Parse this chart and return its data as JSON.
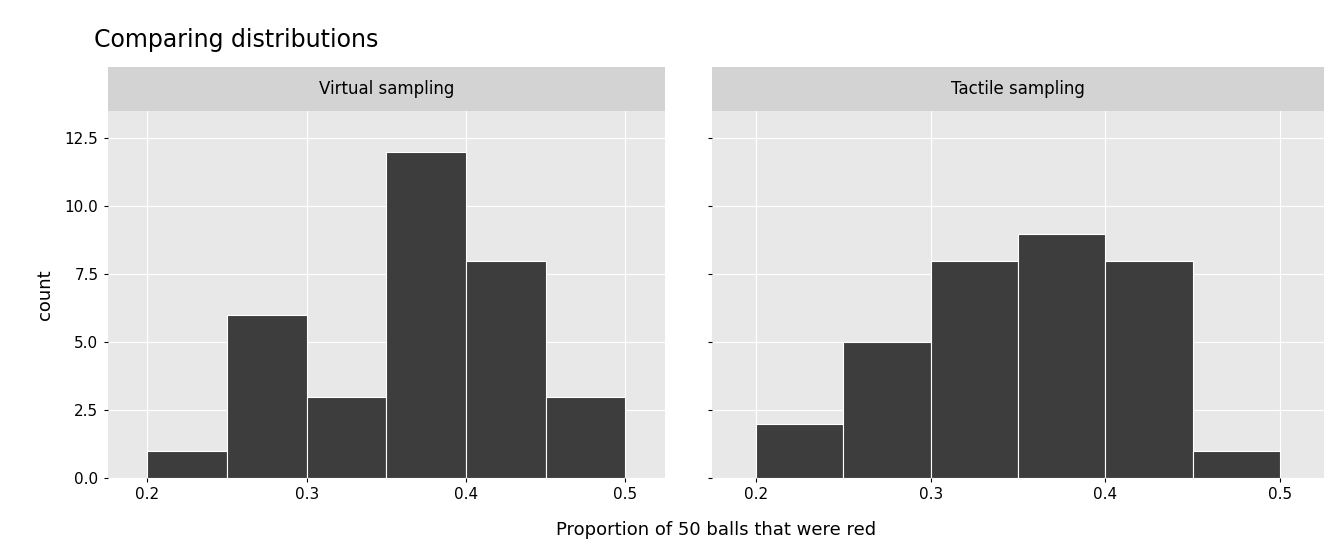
{
  "title": "Comparing distributions",
  "xlabel": "Proportion of 50 balls that were red",
  "ylabel": "count",
  "panel1_title": "Virtual sampling",
  "panel2_title": "Tactile sampling",
  "bin_edges": [
    0.2,
    0.25,
    0.3,
    0.35,
    0.4,
    0.45,
    0.5
  ],
  "virtual_counts": [
    1,
    6,
    3,
    12,
    8,
    3
  ],
  "tactile_counts": [
    2,
    5,
    8,
    9,
    8,
    1
  ],
  "bar_color": "#3d3d3d",
  "bar_edgecolor": "#ffffff",
  "background_plot": "#e8e8e8",
  "background_strip": "#d3d3d3",
  "background_fig": "#ffffff",
  "grid_color": "#ffffff",
  "ylim": [
    0,
    13.5
  ],
  "yticks": [
    0.0,
    2.5,
    5.0,
    7.5,
    10.0,
    12.5
  ],
  "xticks": [
    0.2,
    0.3,
    0.4,
    0.5
  ],
  "title_fontsize": 17,
  "axis_label_fontsize": 13,
  "tick_fontsize": 11,
  "strip_fontsize": 12
}
